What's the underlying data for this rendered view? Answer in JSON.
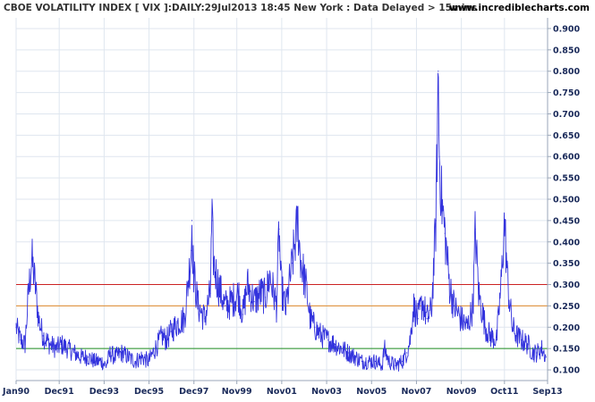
{
  "header": {
    "title": "CBOE VOLATILITY INDEX [ VIX ]:DAILY:29Jul2013 18:45 New York : Data Delayed > 15mins",
    "site": "www.incrediblecharts.com"
  },
  "colors": {
    "background": "#ffffff",
    "plot_background": "#ffffff",
    "grid": "#dfe6ef",
    "axis": "#9aa6b8",
    "series": "#3333dd",
    "line_high": "#cc2222",
    "line_mid": "#e08a2a",
    "line_low": "#1f8f1f",
    "tick_text": "#1a2a5a"
  },
  "chart_data": {
    "type": "line",
    "title": "CBOE VOLATILITY INDEX [ VIX ]:DAILY:29Jul2013 18:45 New York : Data Delayed > 15mins",
    "xlabel": "",
    "ylabel": "",
    "x_tick_labels": [
      "Jan90",
      "Dec91",
      "Dec93",
      "Dec95",
      "Dec97",
      "Nov99",
      "Nov01",
      "Nov03",
      "Nov05",
      "Nov07",
      "Nov09",
      "Oct11",
      "Sep13"
    ],
    "x_tick_years": [
      1990.0,
      1991.92,
      1993.92,
      1995.92,
      1997.92,
      1999.83,
      2001.83,
      2003.83,
      2005.83,
      2007.83,
      2009.83,
      2011.75,
      2013.67
    ],
    "y_tick_labels": [
      "0.100",
      "0.150",
      "0.200",
      "0.250",
      "0.300",
      "0.350",
      "0.400",
      "0.450",
      "0.500",
      "0.550",
      "0.600",
      "0.650",
      "0.700",
      "0.750",
      "0.800",
      "0.850",
      "0.900"
    ],
    "y_ticks": [
      0.1,
      0.15,
      0.2,
      0.25,
      0.3,
      0.35,
      0.4,
      0.45,
      0.5,
      0.55,
      0.6,
      0.65,
      0.7,
      0.75,
      0.8,
      0.85,
      0.9
    ],
    "xlim": [
      1990.0,
      2013.67
    ],
    "ylim": [
      0.075,
      0.925
    ],
    "grid": true,
    "horizontal_lines": [
      {
        "value": 0.3,
        "color": "#cc2222"
      },
      {
        "value": 0.25,
        "color": "#e08a2a"
      },
      {
        "value": 0.15,
        "color": "#1f8f1f"
      }
    ],
    "series": [
      {
        "x": [
          1990.0,
          1990.2,
          1990.4,
          1990.55,
          1990.7,
          1990.85,
          1991.0,
          1991.2,
          1991.5,
          1991.8,
          1992.0,
          1992.3,
          1992.6,
          1992.9,
          1993.2,
          1993.5,
          1993.8,
          1994.0,
          1994.2,
          1994.4,
          1994.7,
          1995.0,
          1995.3,
          1995.6,
          1995.9,
          1996.2,
          1996.5,
          1996.7,
          1996.9,
          1997.2,
          1997.5,
          1997.8,
          1997.83,
          1997.9,
          1998.1,
          1998.4,
          1998.65,
          1998.72,
          1998.8,
          1999.0,
          1999.3,
          1999.6,
          1999.9,
          2000.1,
          2000.3,
          2000.6,
          2000.9,
          2001.1,
          2001.3,
          2001.6,
          2001.71,
          2001.8,
          2002.0,
          2002.3,
          2002.55,
          2002.6,
          2002.7,
          2002.9,
          2003.1,
          2003.3,
          2003.6,
          2003.9,
          2004.2,
          2004.5,
          2004.8,
          2005.1,
          2005.4,
          2005.7,
          2006.0,
          2006.3,
          2006.4,
          2006.6,
          2006.9,
          2007.2,
          2007.4,
          2007.55,
          2007.7,
          2007.9,
          2008.1,
          2008.3,
          2008.5,
          2008.7,
          2008.8,
          2008.85,
          2008.95,
          2009.1,
          2009.3,
          2009.5,
          2009.8,
          2010.1,
          2010.35,
          2010.45,
          2010.6,
          2010.9,
          2011.1,
          2011.4,
          2011.6,
          2011.75,
          2011.9,
          2012.1,
          2012.3,
          2012.5,
          2012.8,
          2013.0,
          2013.2,
          2013.4,
          2013.6
        ],
        "y": [
          0.2,
          0.17,
          0.16,
          0.28,
          0.36,
          0.3,
          0.22,
          0.18,
          0.16,
          0.15,
          0.16,
          0.15,
          0.14,
          0.13,
          0.13,
          0.12,
          0.12,
          0.11,
          0.14,
          0.13,
          0.14,
          0.13,
          0.12,
          0.13,
          0.12,
          0.15,
          0.18,
          0.17,
          0.19,
          0.21,
          0.22,
          0.38,
          0.45,
          0.33,
          0.25,
          0.22,
          0.28,
          0.45,
          0.35,
          0.3,
          0.25,
          0.26,
          0.28,
          0.23,
          0.3,
          0.26,
          0.28,
          0.27,
          0.32,
          0.25,
          0.43,
          0.3,
          0.24,
          0.35,
          0.45,
          0.4,
          0.35,
          0.3,
          0.22,
          0.2,
          0.18,
          0.17,
          0.16,
          0.15,
          0.14,
          0.13,
          0.12,
          0.12,
          0.12,
          0.11,
          0.15,
          0.12,
          0.11,
          0.12,
          0.14,
          0.17,
          0.25,
          0.22,
          0.26,
          0.22,
          0.24,
          0.45,
          0.8,
          0.6,
          0.5,
          0.42,
          0.3,
          0.25,
          0.22,
          0.2,
          0.25,
          0.43,
          0.28,
          0.2,
          0.18,
          0.17,
          0.3,
          0.45,
          0.3,
          0.2,
          0.18,
          0.17,
          0.16,
          0.14,
          0.14,
          0.15,
          0.13
        ]
      }
    ]
  }
}
